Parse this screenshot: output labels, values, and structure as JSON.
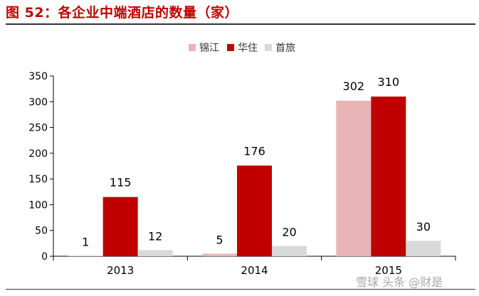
{
  "title": "图 52：各企业中端酒店的数量（家）",
  "watermark": "雪球 头条 @财是",
  "chart_data": {
    "type": "bar",
    "categories": [
      "2013",
      "2014",
      "2015"
    ],
    "series": [
      {
        "name": "锦江",
        "values": [
          1,
          5,
          302
        ],
        "color": "#e8b4b6"
      },
      {
        "name": "华住",
        "values": [
          115,
          176,
          310
        ],
        "color": "#c00000"
      },
      {
        "name": "首旅",
        "values": [
          12,
          20,
          30
        ],
        "color": "#d9d9d9"
      }
    ],
    "yticks": [
      0,
      50,
      100,
      150,
      200,
      250,
      300,
      350
    ],
    "ylim": [
      0,
      350
    ],
    "legend_position": "top-center",
    "grid": false
  }
}
